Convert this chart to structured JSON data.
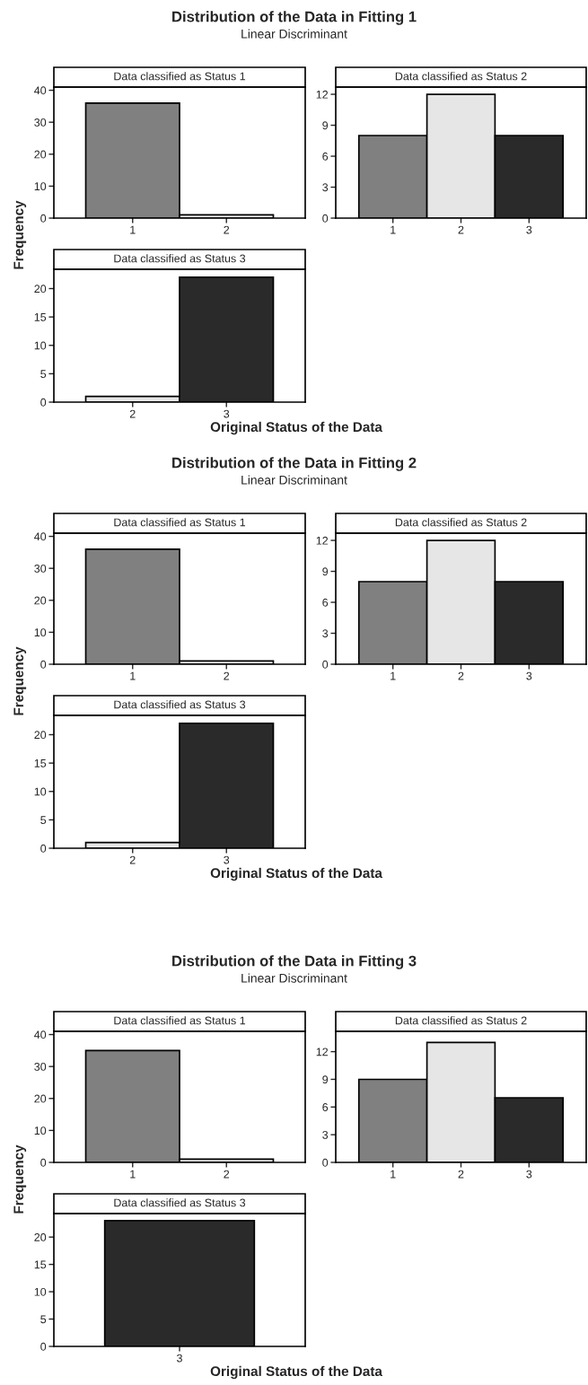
{
  "chart_data": [
    {
      "type": "bar",
      "title": "Data classified as Status 1",
      "annotations": [
        "Distribution of the Data in Fitting 1",
        "Linear Discriminant"
      ],
      "ylabel": "Frequency",
      "categories": [
        "1",
        "2"
      ],
      "values": [
        36,
        1
      ],
      "colors": [
        "#808080",
        "#e6e6e6"
      ],
      "ylim": [
        0,
        41
      ],
      "yticks": [
        0,
        10,
        20,
        30,
        40
      ],
      "grid": false
    },
    {
      "type": "bar",
      "title": "Data classified as Status 2",
      "categories": [
        "1",
        "2",
        "3"
      ],
      "values": [
        8,
        12,
        8
      ],
      "colors": [
        "#808080",
        "#e6e6e6",
        "#2a2a2a"
      ],
      "ylim": [
        0,
        12.7
      ],
      "yticks": [
        0,
        3,
        6,
        9,
        12
      ],
      "grid": false
    },
    {
      "type": "bar",
      "title": "Data classified as Status 3",
      "xlabel": "Original Status of the Data",
      "categories": [
        "2",
        "3"
      ],
      "values": [
        1,
        22
      ],
      "colors": [
        "#e6e6e6",
        "#2a2a2a"
      ],
      "ylim": [
        0,
        23.4
      ],
      "yticks": [
        0,
        5,
        10,
        15,
        20
      ],
      "grid": false
    },
    {
      "type": "bar",
      "title": "Data classified as Status 1",
      "annotations": [
        "Distribution of the Data in Fitting 2",
        "Linear Discriminant"
      ],
      "ylabel": "Frequency",
      "categories": [
        "1",
        "2"
      ],
      "values": [
        36,
        1
      ],
      "colors": [
        "#808080",
        "#e6e6e6"
      ],
      "ylim": [
        0,
        41
      ],
      "yticks": [
        0,
        10,
        20,
        30,
        40
      ],
      "grid": false
    },
    {
      "type": "bar",
      "title": "Data classified as Status 2",
      "categories": [
        "1",
        "2",
        "3"
      ],
      "values": [
        8,
        12,
        8
      ],
      "colors": [
        "#808080",
        "#e6e6e6",
        "#2a2a2a"
      ],
      "ylim": [
        0,
        12.7
      ],
      "yticks": [
        0,
        3,
        6,
        9,
        12
      ],
      "grid": false
    },
    {
      "type": "bar",
      "title": "Data classified as Status 3",
      "xlabel": "Original Status of the Data",
      "categories": [
        "2",
        "3"
      ],
      "values": [
        1,
        22
      ],
      "colors": [
        "#e6e6e6",
        "#2a2a2a"
      ],
      "ylim": [
        0,
        23.4
      ],
      "yticks": [
        0,
        5,
        10,
        15,
        20
      ],
      "grid": false
    },
    {
      "type": "bar",
      "title": "Data classified as Status 1",
      "annotations": [
        "Distribution of the Data in Fitting 3",
        "Linear Discriminant"
      ],
      "ylabel": "Frequency",
      "categories": [
        "1",
        "2"
      ],
      "values": [
        35,
        1
      ],
      "colors": [
        "#808080",
        "#e6e6e6"
      ],
      "ylim": [
        0,
        41
      ],
      "yticks": [
        0,
        10,
        20,
        30,
        40
      ],
      "grid": false
    },
    {
      "type": "bar",
      "title": "Data classified as Status 2",
      "categories": [
        "1",
        "2",
        "3"
      ],
      "values": [
        9,
        13,
        7
      ],
      "colors": [
        "#808080",
        "#e6e6e6",
        "#2a2a2a"
      ],
      "ylim": [
        0,
        14.2
      ],
      "yticks": [
        0,
        3,
        6,
        9,
        12
      ],
      "grid": false
    },
    {
      "type": "bar",
      "title": "Data classified as Status 3",
      "xlabel": "Original Status of the Data",
      "categories": [
        "3"
      ],
      "values": [
        23
      ],
      "colors": [
        "#2a2a2a"
      ],
      "ylim": [
        0,
        24.3
      ],
      "yticks": [
        0,
        5,
        10,
        15,
        20
      ],
      "grid": false
    }
  ]
}
